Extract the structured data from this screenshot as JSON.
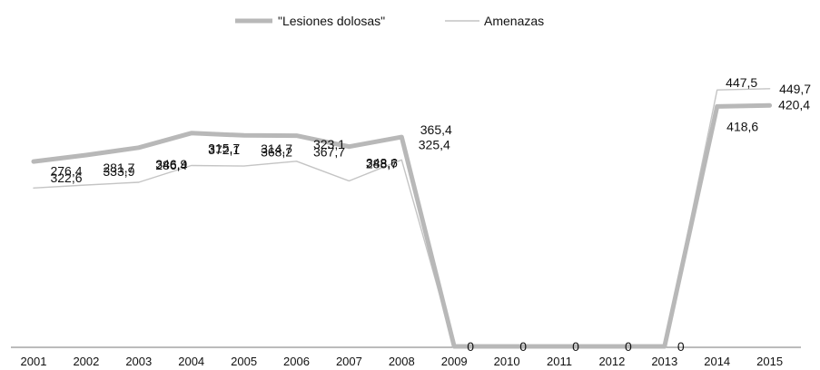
{
  "chart_data": {
    "type": "line",
    "title": "",
    "xlabel": "",
    "ylabel": "",
    "categories": [
      "2001",
      "2002",
      "2003",
      "2004",
      "2005",
      "2006",
      "2007",
      "2008",
      "2009",
      "2010",
      "2011",
      "2012",
      "2013",
      "2014",
      "2015"
    ],
    "series": [
      {
        "name": "\"Lesiones dolosas\"",
        "color": "#b8b8b8",
        "values": [
          322.6,
          333.9,
          346.9,
          372.1,
          368.2,
          367.7,
          348.6,
          365.4,
          0,
          0,
          0,
          0,
          0,
          418.6,
          420.4
        ],
        "labels": [
          "322,6",
          "333,9",
          "346,9",
          "372,1",
          "368,2",
          "367,7",
          "348,6",
          "365,4",
          "0",
          "0",
          "0",
          "0",
          "0",
          "418,6",
          "420,4"
        ]
      },
      {
        "name": "Amenazas",
        "color": "#c4c4c4",
        "values": [
          276.4,
          281.7,
          286.4,
          315.7,
          314.7,
          323.1,
          288.7,
          325.4,
          0,
          0,
          0,
          0,
          0,
          447.5,
          449.7
        ],
        "labels": [
          "276,4",
          "281,7",
          "286,4",
          "315,7",
          "314,7",
          "323,1",
          "288,7",
          "325,4",
          "",
          "",
          "",
          "",
          "",
          "447,5",
          "449,7"
        ]
      }
    ],
    "legend": {
      "position": "top-center"
    },
    "grid": false
  }
}
